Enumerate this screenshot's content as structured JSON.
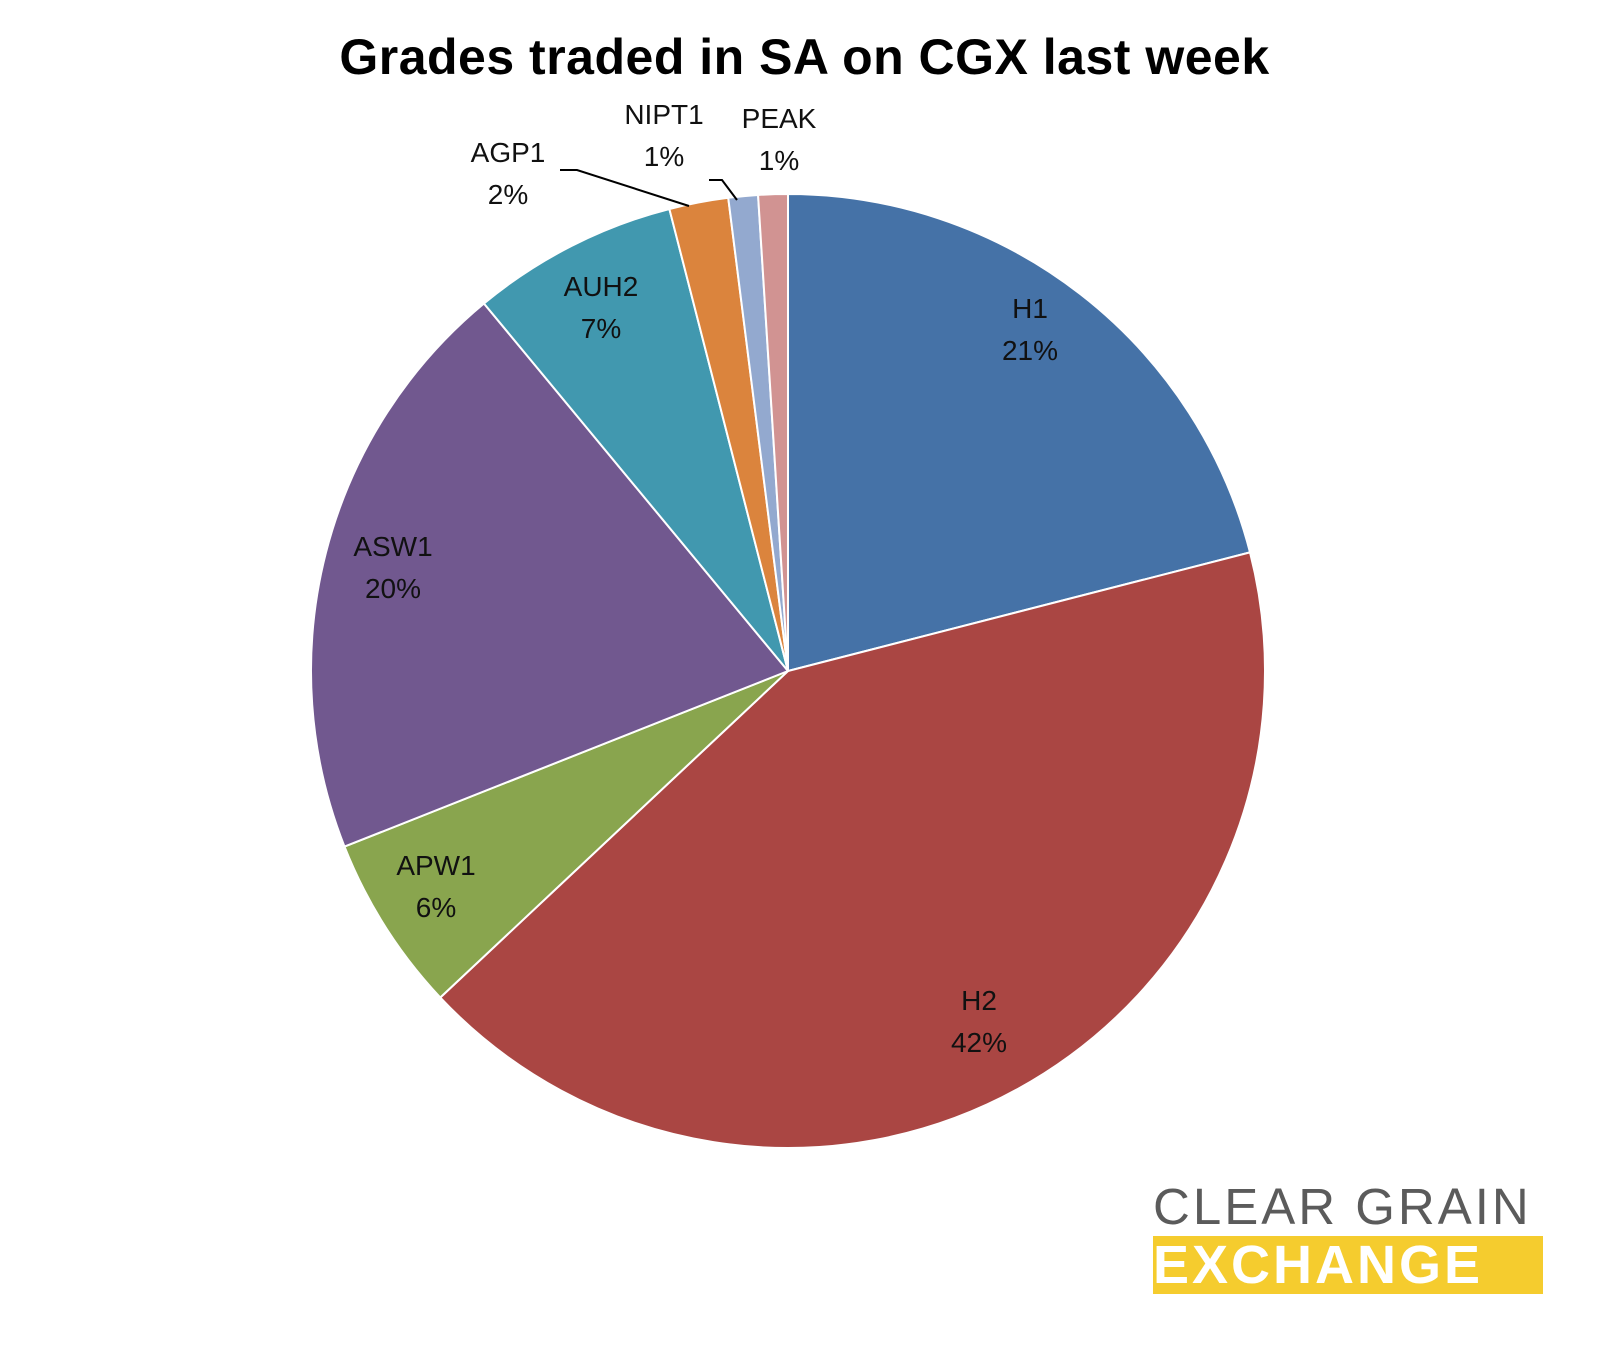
{
  "chart_data": {
    "type": "pie",
    "title": "Grades traded in SA on CGX last week",
    "start_angle": "12 o'clock",
    "direction": "clockwise",
    "slices": [
      {
        "label": "H1",
        "value": 21,
        "pct_label": "21%",
        "color": "#4572a7"
      },
      {
        "label": "H2",
        "value": 42,
        "pct_label": "42%",
        "color": "#aa4643"
      },
      {
        "label": "APW1",
        "value": 6,
        "pct_label": "6%",
        "color": "#89a54e"
      },
      {
        "label": "ASW1",
        "value": 20,
        "pct_label": "20%",
        "color": "#71588f"
      },
      {
        "label": "AUH2",
        "value": 7,
        "pct_label": "7%",
        "color": "#4198af"
      },
      {
        "label": "AGP1",
        "value": 2,
        "pct_label": "2%",
        "color": "#db843d"
      },
      {
        "label": "NIPT1",
        "value": 1,
        "pct_label": "1%",
        "color": "#93a9cf"
      },
      {
        "label": "PEAK",
        "value": 1,
        "pct_label": "1%",
        "color": "#d19392"
      }
    ],
    "legend": "none",
    "grid": false
  },
  "logo": {
    "line1": "CLEAR GRAIN",
    "line2": "EXCHANGE",
    "brand_color": "#f5cc2e",
    "text_color": "#5b5b5b"
  }
}
